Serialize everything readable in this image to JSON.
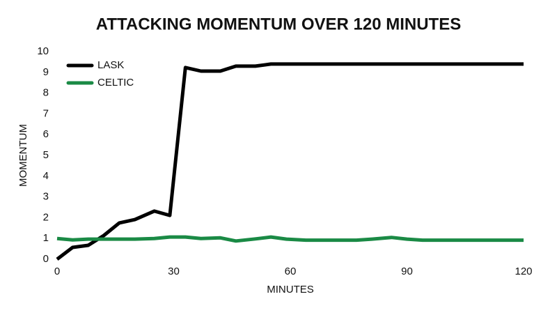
{
  "chart_data": {
    "type": "line",
    "title": "ATTACKING MOMENTUM OVER 120 MINUTES",
    "x_label": "MINUTES",
    "y_label": "MOMENTUM",
    "x": [
      0,
      4,
      8,
      12,
      16,
      20,
      25,
      29,
      33,
      37,
      42,
      46,
      51,
      55,
      59,
      64,
      68,
      72,
      77,
      81,
      86,
      90,
      94,
      99,
      103,
      108,
      112,
      116,
      120
    ],
    "series": [
      {
        "name": "LASK",
        "color": "#000000",
        "values": [
          0,
          0.57,
          0.67,
          1.14,
          1.75,
          1.91,
          2.32,
          2.11,
          9.23,
          9.06,
          9.06,
          9.3,
          9.3,
          9.4,
          9.4,
          9.4,
          9.4,
          9.4,
          9.4,
          9.4,
          9.4,
          9.4,
          9.4,
          9.4,
          9.4,
          9.4,
          9.4,
          9.4,
          9.4
        ]
      },
      {
        "name": "CELTIC",
        "color": "#1a8a45",
        "values": [
          1.0,
          0.93,
          0.97,
          0.97,
          0.97,
          0.97,
          1.0,
          1.07,
          1.07,
          1.0,
          1.03,
          0.88,
          0.98,
          1.07,
          0.97,
          0.92,
          0.92,
          0.92,
          0.92,
          0.97,
          1.05,
          0.97,
          0.92,
          0.92,
          0.92,
          0.92,
          0.92,
          0.92,
          0.92
        ]
      }
    ],
    "xlim": [
      0,
      120
    ],
    "xticks": [
      0,
      30,
      60,
      90,
      120
    ],
    "ylim": [
      0,
      10
    ],
    "yticks": [
      0,
      1,
      2,
      3,
      4,
      5,
      6,
      7,
      8,
      9,
      10
    ],
    "legend": "top-left",
    "grid": false
  }
}
